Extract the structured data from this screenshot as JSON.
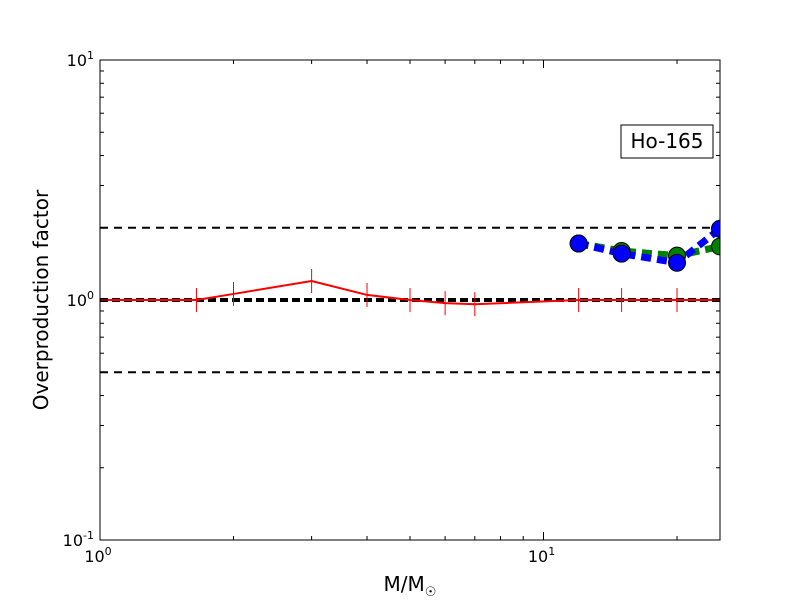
{
  "chart_data": {
    "type": "line",
    "title": "",
    "xlabel": "M/M☉",
    "xlabel_main": "M/M",
    "xlabel_sub": "☉",
    "ylabel": "Overproduction factor",
    "x_scale": "log",
    "y_scale": "log",
    "xlim": [
      1,
      25
    ],
    "ylim": [
      0.1,
      10
    ],
    "x_ticks": [
      {
        "value": 1,
        "base": "10",
        "exp": "0"
      },
      {
        "value": 10,
        "base": "10",
        "exp": "1"
      }
    ],
    "y_ticks": [
      {
        "value": 0.1,
        "base": "10",
        "exp": "-1"
      },
      {
        "value": 1,
        "base": "10",
        "exp": "0"
      },
      {
        "value": 10,
        "base": "10",
        "exp": "1"
      }
    ],
    "grid": false,
    "annotation": "Ho-165",
    "reference_lines": [
      {
        "y": 2.0,
        "style": "dashed",
        "color": "#000000"
      },
      {
        "y": 1.0,
        "style": "dashed-thick",
        "color": "#000000"
      },
      {
        "y": 0.5,
        "style": "dashed",
        "color": "#000000"
      }
    ],
    "series": [
      {
        "style": "solid",
        "color": "#ff0000",
        "marker": "vline",
        "x": [
          1.0,
          1.65,
          2.0,
          3.0,
          4.0,
          5.0,
          6.0,
          7.0,
          12.0,
          15.0,
          20.0,
          25.0
        ],
        "values": [
          1.0,
          1.0,
          1.06,
          1.2,
          1.05,
          1.0,
          0.97,
          0.96,
          1.0,
          1.0,
          1.0,
          1.0
        ]
      },
      {
        "style": "dashed",
        "color": "#008000",
        "marker": "circle",
        "x": [
          12.0,
          15.0,
          20.0,
          25.0
        ],
        "values": [
          1.72,
          1.6,
          1.53,
          1.67
        ]
      },
      {
        "style": "dashed",
        "color": "#0000ff",
        "marker": "circle",
        "x": [
          12.0,
          15.0,
          20.0,
          25.0
        ],
        "values": [
          1.72,
          1.56,
          1.43,
          1.98
        ]
      }
    ]
  }
}
